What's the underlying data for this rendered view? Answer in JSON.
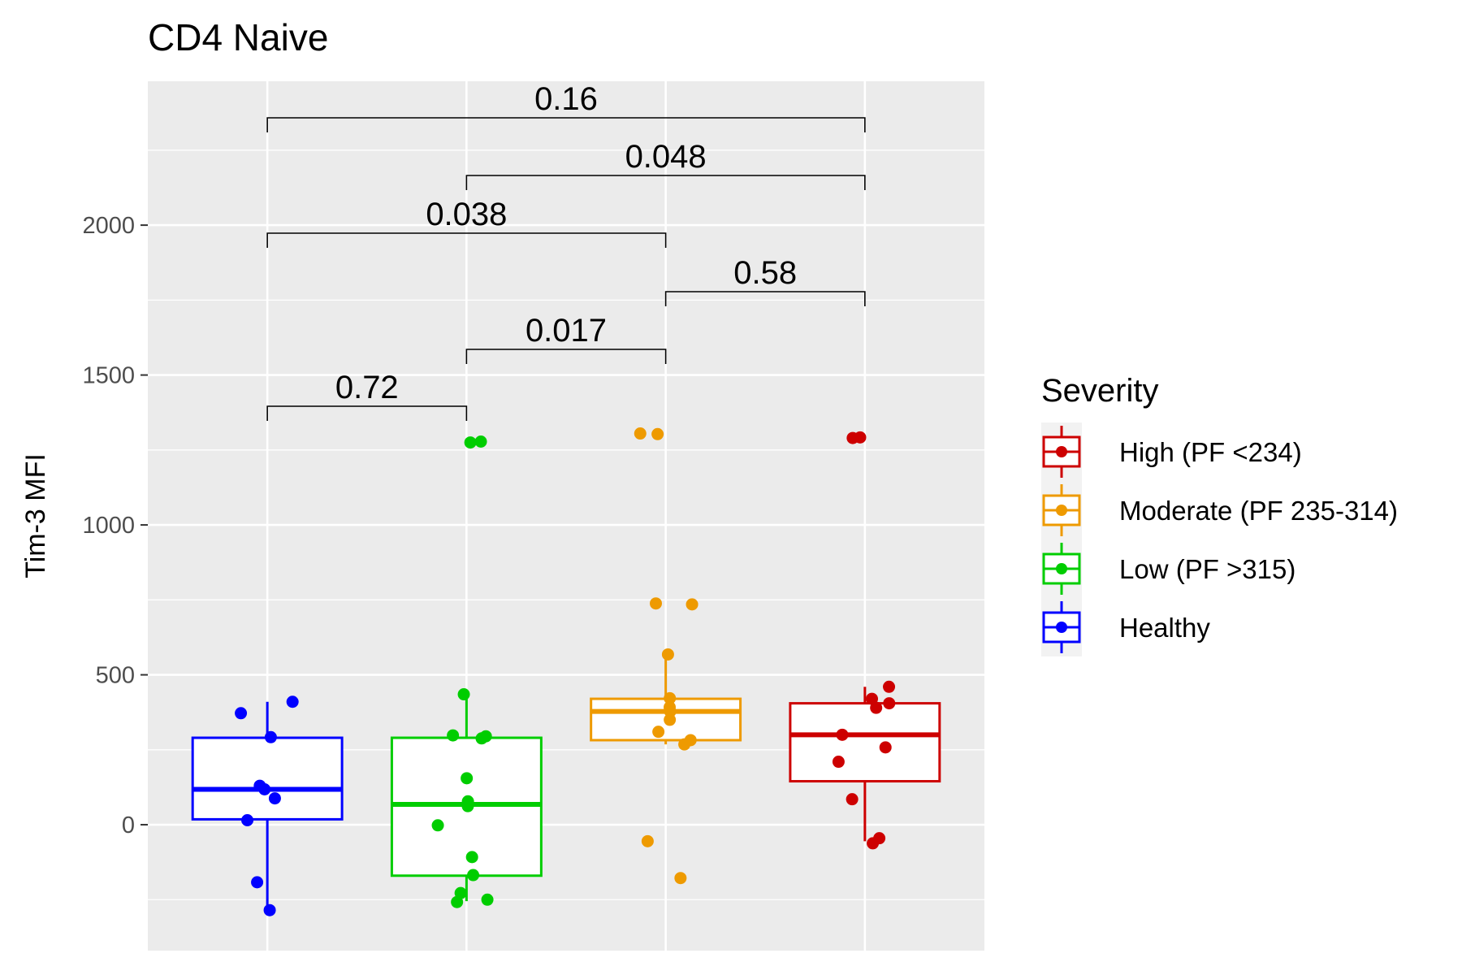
{
  "chart_data": {
    "type": "box",
    "title": "CD4 Naive",
    "xlabel": "",
    "ylabel": "Tim-3 MFI",
    "ylim": [
      -420,
      2480
    ],
    "yticks": [
      0,
      500,
      1000,
      1500,
      2000
    ],
    "grid": true,
    "legend_title": "Severity",
    "legend_position": "right",
    "groups": [
      {
        "name": "Healthy",
        "color": "#0000ff",
        "box": {
          "whisker_low": -285,
          "q1": 18,
          "median": 118,
          "q3": 290,
          "whisker_high": 410
        },
        "points": [
          410,
          372,
          292,
          130,
          118,
          88,
          15,
          -192,
          -285
        ]
      },
      {
        "name": "Low (PF >315)",
        "color": "#00cd00",
        "box": {
          "whisker_low": -255,
          "q1": -170,
          "median": 68,
          "q3": 290,
          "whisker_high": 435
        },
        "points": [
          1278,
          1275,
          435,
          298,
          295,
          288,
          155,
          78,
          62,
          -2,
          -108,
          -168,
          -228,
          -250,
          -258
        ]
      },
      {
        "name": "Moderate (PF 235-314)",
        "color": "#ee9a00",
        "box": {
          "whisker_low": 268,
          "q1": 282,
          "median": 378,
          "q3": 420,
          "whisker_high": 568
        },
        "points": [
          1305,
          1303,
          738,
          735,
          568,
          422,
          392,
          378,
          350,
          310,
          282,
          268,
          -55,
          -178
        ]
      },
      {
        "name": "High (PF <234)",
        "color": "#cd0000",
        "box": {
          "whisker_low": -55,
          "q1": 145,
          "median": 300,
          "q3": 405,
          "whisker_high": 460
        },
        "points": [
          1292,
          1290,
          460,
          420,
          405,
          390,
          300,
          258,
          210,
          85,
          -45,
          -62
        ]
      }
    ],
    "comparisons": [
      {
        "from": 0,
        "to": 3,
        "label": "0.16"
      },
      {
        "from": 1,
        "to": 3,
        "label": "0.048"
      },
      {
        "from": 0,
        "to": 2,
        "label": "0.038"
      },
      {
        "from": 2,
        "to": 3,
        "label": "0.58"
      },
      {
        "from": 1,
        "to": 2,
        "label": "0.017"
      },
      {
        "from": 0,
        "to": 1,
        "label": "0.72"
      }
    ],
    "legend_order": [
      "High (PF <234)",
      "Moderate (PF 235-314)",
      "Low (PF >315)",
      "Healthy"
    ]
  }
}
